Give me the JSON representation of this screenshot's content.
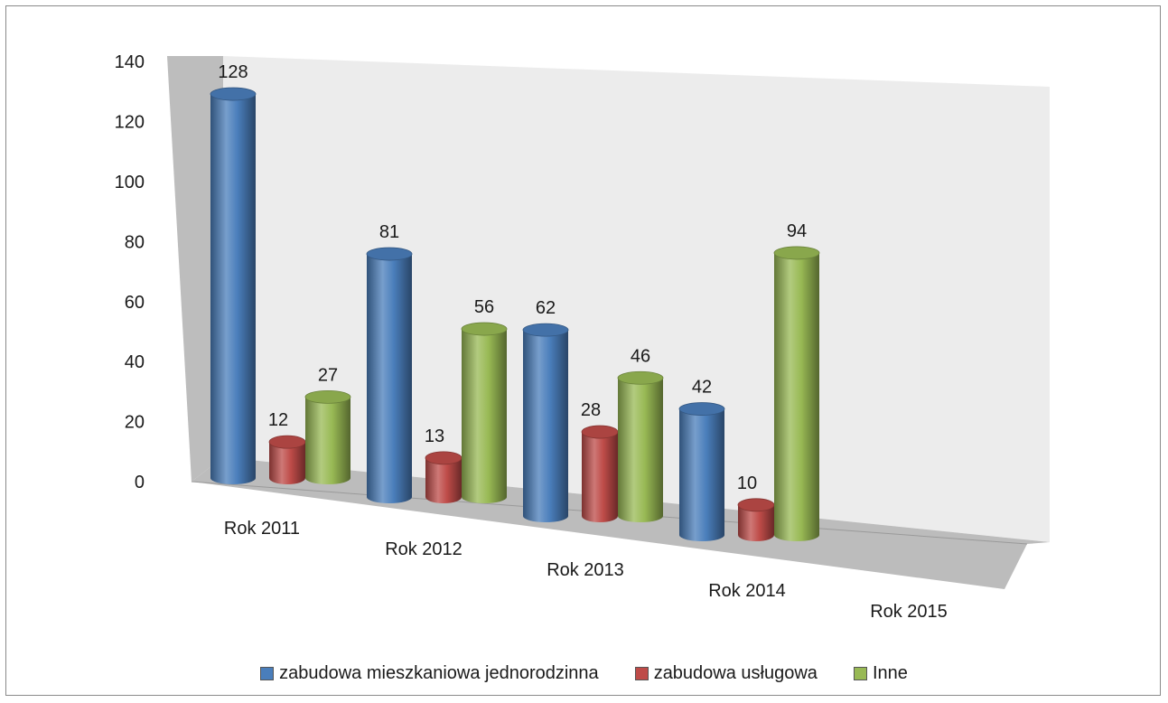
{
  "chart_data": {
    "type": "bar",
    "style": "3d-cylinder",
    "categories": [
      "Rok 2011",
      "Rok 2012",
      "Rok 2013",
      "Rok 2014",
      "Rok 2015"
    ],
    "series": [
      {
        "name": "zabudowa mieszkaniowa jednorodzinna",
        "values": [
          128,
          81,
          62,
          42,
          null
        ],
        "color": "#4a7ebb"
      },
      {
        "name": "zabudowa usługowa",
        "values": [
          12,
          13,
          28,
          10,
          null
        ],
        "color": "#be4b48"
      },
      {
        "name": "Inne",
        "values": [
          27,
          56,
          46,
          94,
          null
        ],
        "color": "#98b954"
      }
    ],
    "yticks": [
      "0",
      "20",
      "40",
      "60",
      "80",
      "100",
      "120",
      "140"
    ],
    "ylim": [
      0,
      140
    ],
    "grid": false,
    "legend_position": "bottom",
    "data_labels": true
  }
}
